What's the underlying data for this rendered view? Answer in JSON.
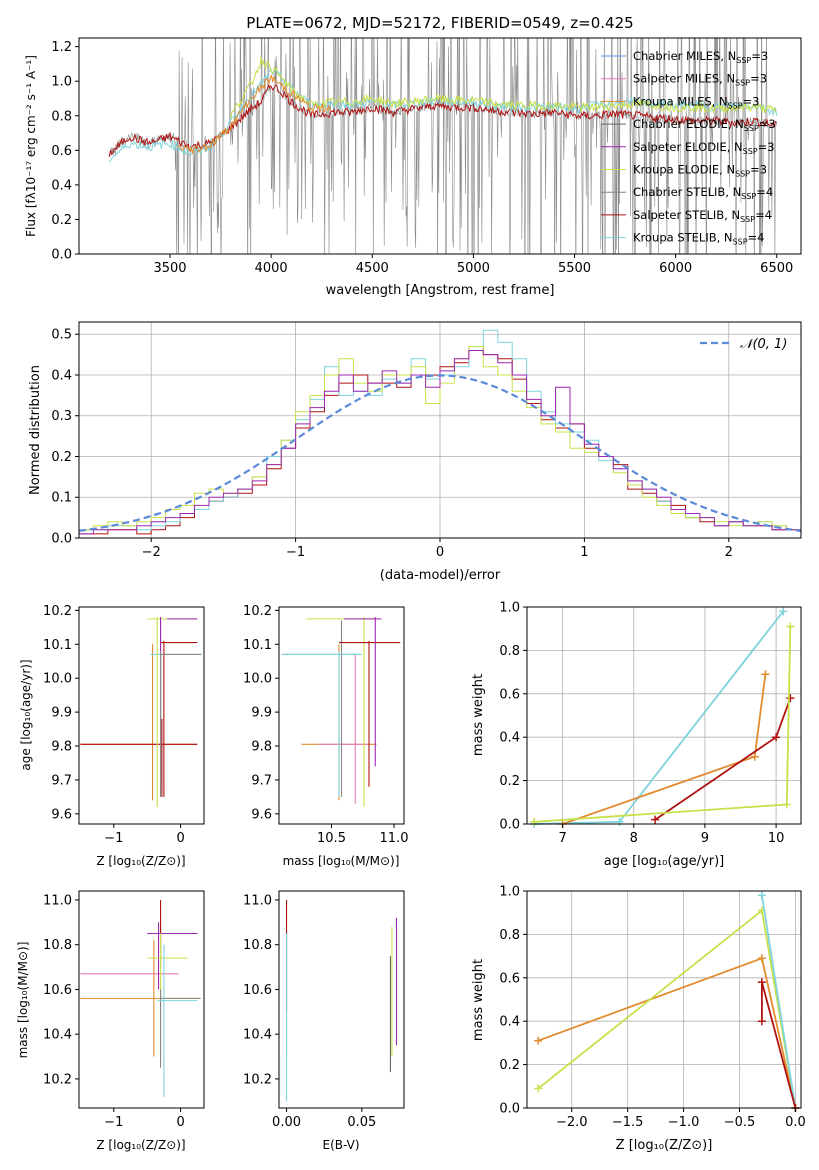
{
  "colors": {
    "miles_chabrier": "#6d8ee6",
    "miles_salpeter": "#e87db7",
    "miles_kroupa": "#e28b2e",
    "elodie_chabrier": "#666666",
    "elodie_salpeter": "#9c27b0",
    "elodie_kroupa": "#c8e04a",
    "stelib_chabrier": "#888888",
    "stelib_salpeter": "#b01212",
    "stelib_kroupa": "#7fd3dc",
    "gaussian": "#5b8ad8"
  },
  "chart_data": [
    {
      "type": "line",
      "id": "spectrum",
      "title": "PLATE=0672, MJD=52172, FIBERID=0549, z=0.425",
      "xlabel": "wavelength [Angstrom, rest frame]",
      "ylabel": "Flux [fλ10⁻¹⁷ erg cm⁻² s⁻¹ A⁻¹]",
      "xlim": [
        3050,
        6620
      ],
      "ylim": [
        0,
        1.25
      ],
      "xticks": [
        3500,
        4000,
        4500,
        5000,
        5500,
        6000,
        6500
      ],
      "yticks": [
        0.0,
        0.2,
        0.4,
        0.6,
        0.8,
        1.0,
        1.2
      ],
      "grid": false,
      "legend_position": "top-right",
      "legend": [
        {
          "label": "Chabrier MILES, N",
          "sub": "SSP",
          "suffix": "=3",
          "color_key": "miles_chabrier"
        },
        {
          "label": "Salpeter MILES, N",
          "sub": "SSP",
          "suffix": "=3",
          "color_key": "miles_salpeter"
        },
        {
          "label": "Kroupa MILES, N",
          "sub": "SSP",
          "suffix": "=3",
          "color_key": "miles_kroupa"
        },
        {
          "label": "Chabrier ELODIE, N",
          "sub": "SSP",
          "suffix": "=3",
          "color_key": "elodie_chabrier"
        },
        {
          "label": "Salpeter ELODIE, N",
          "sub": "SSP",
          "suffix": "=3",
          "color_key": "elodie_salpeter"
        },
        {
          "label": "Kroupa ELODIE, N",
          "sub": "SSP",
          "suffix": "=3",
          "color_key": "elodie_kroupa"
        },
        {
          "label": "Chabrier STELIB, N",
          "sub": "SSP",
          "suffix": "=4",
          "color_key": "stelib_chabrier"
        },
        {
          "label": "Salpeter STELIB, N",
          "sub": "SSP",
          "suffix": "=4",
          "color_key": "stelib_salpeter"
        },
        {
          "label": "Kroupa STELIB, N",
          "sub": "SSP",
          "suffix": "=4",
          "color_key": "stelib_kroupa"
        }
      ],
      "series": [
        {
          "color_key": "stelib_salpeter",
          "x": [
            3200,
            3300,
            3400,
            3500,
            3600,
            3700,
            3800,
            3900,
            3950,
            4000,
            4050,
            4100,
            4200,
            4300,
            4400,
            4500,
            4600,
            4700,
            4800,
            4900,
            5000,
            5100,
            5200,
            5300,
            5400,
            5500,
            5600,
            5700,
            5800,
            5900,
            6000,
            6100,
            6200,
            6300,
            6400,
            6500
          ],
          "y": [
            0.58,
            0.68,
            0.64,
            0.68,
            0.62,
            0.64,
            0.73,
            0.84,
            0.88,
            0.98,
            0.94,
            0.88,
            0.8,
            0.82,
            0.82,
            0.85,
            0.82,
            0.84,
            0.86,
            0.85,
            0.85,
            0.83,
            0.82,
            0.81,
            0.82,
            0.8,
            0.8,
            0.81,
            0.8,
            0.79,
            0.78,
            0.77,
            0.77,
            0.76,
            0.77,
            0.74
          ]
        },
        {
          "color_key": "stelib_kroupa",
          "x": [
            3200,
            3300,
            3400,
            3500,
            3600,
            3700,
            3800,
            3900,
            3950,
            4000,
            4050,
            4100,
            4200,
            4300,
            4400,
            4500,
            4600,
            4700,
            4800,
            4900,
            5000,
            5100,
            5200,
            5300,
            5400,
            5500,
            5600,
            5700,
            5800,
            5900,
            6000,
            6100,
            6200,
            6300,
            6400,
            6500
          ],
          "y": [
            0.55,
            0.64,
            0.62,
            0.64,
            0.58,
            0.62,
            0.76,
            0.92,
            0.98,
            1.06,
            1.02,
            0.96,
            0.86,
            0.87,
            0.86,
            0.88,
            0.86,
            0.87,
            0.89,
            0.88,
            0.88,
            0.86,
            0.85,
            0.85,
            0.85,
            0.84,
            0.86,
            0.87,
            0.88,
            0.87,
            0.86,
            0.86,
            0.85,
            0.86,
            0.86,
            0.82
          ]
        },
        {
          "color_key": "elodie_kroupa",
          "x": [
            3800,
            3900,
            3950,
            4000,
            4050,
            4100,
            4200,
            4300,
            4400,
            4500,
            4600,
            4700,
            4800,
            4900,
            5000,
            5100,
            5200,
            5300,
            5400,
            5500,
            5600,
            5700,
            5800,
            5900,
            6000,
            6100,
            6200,
            6300,
            6400,
            6500
          ],
          "y": [
            0.8,
            0.98,
            1.12,
            1.08,
            1.02,
            0.95,
            0.86,
            0.88,
            0.88,
            0.9,
            0.87,
            0.88,
            0.9,
            0.89,
            0.89,
            0.87,
            0.86,
            0.86,
            0.86,
            0.85,
            0.85,
            0.86,
            0.87,
            0.86,
            0.85,
            0.85,
            0.84,
            0.85,
            0.85,
            0.83
          ]
        },
        {
          "color_key": "miles_kroupa",
          "x": [
            3540,
            3600,
            3700,
            3800,
            3900,
            4000,
            4100,
            4200,
            4300
          ],
          "y": [
            0.62,
            0.6,
            0.63,
            0.74,
            0.9,
            1.02,
            0.93,
            0.84,
            0.85
          ]
        }
      ]
    },
    {
      "type": "line",
      "id": "residuals",
      "xlabel": "(data-model)/error",
      "ylabel": "Normed distribution",
      "xlim": [
        -2.5,
        2.5
      ],
      "ylim": [
        0,
        0.53
      ],
      "xticks": [
        -2,
        -1,
        0,
        1,
        2
      ],
      "xtick_labels": [
        "−2",
        "−1",
        "0",
        "1",
        "2"
      ],
      "yticks": [
        0.0,
        0.1,
        0.2,
        0.3,
        0.4,
        0.5
      ],
      "grid": true,
      "legend_position": "top-right",
      "legend": [
        {
          "label": "𝒩(0, 1)",
          "color_key": "gaussian"
        }
      ],
      "bin_edges_start": -2.5,
      "bin_width": 0.1,
      "series": [
        {
          "color_key": "stelib_salpeter",
          "values": [
            0.01,
            0.01,
            0.02,
            0.02,
            0.01,
            0.02,
            0.03,
            0.05,
            0.07,
            0.09,
            0.1,
            0.11,
            0.13,
            0.17,
            0.22,
            0.27,
            0.31,
            0.35,
            0.38,
            0.4,
            0.38,
            0.38,
            0.37,
            0.4,
            0.4,
            0.42,
            0.43,
            0.47,
            0.45,
            0.44,
            0.39,
            0.33,
            0.29,
            0.27,
            0.28,
            0.22,
            0.2,
            0.18,
            0.12,
            0.11,
            0.09,
            0.08,
            0.05,
            0.04,
            0.03,
            0.04,
            0.03,
            0.03,
            0.02,
            0.02
          ]
        },
        {
          "color_key": "stelib_kroupa",
          "values": [
            0.02,
            0.02,
            0.03,
            0.03,
            0.02,
            0.03,
            0.04,
            0.06,
            0.07,
            0.09,
            0.1,
            0.12,
            0.15,
            0.2,
            0.24,
            0.29,
            0.34,
            0.42,
            0.35,
            0.36,
            0.35,
            0.39,
            0.38,
            0.44,
            0.39,
            0.4,
            0.42,
            0.46,
            0.51,
            0.48,
            0.44,
            0.36,
            0.31,
            0.28,
            0.26,
            0.24,
            0.19,
            0.17,
            0.14,
            0.12,
            0.09,
            0.06,
            0.05,
            0.05,
            0.03,
            0.04,
            0.03,
            0.04,
            0.03,
            0.02
          ]
        },
        {
          "color_key": "elodie_kroupa",
          "values": [
            0.02,
            0.03,
            0.04,
            0.03,
            0.04,
            0.05,
            0.07,
            0.08,
            0.11,
            0.12,
            0.11,
            0.12,
            0.15,
            0.18,
            0.24,
            0.31,
            0.35,
            0.4,
            0.44,
            0.38,
            0.36,
            0.4,
            0.4,
            0.42,
            0.33,
            0.38,
            0.44,
            0.47,
            0.42,
            0.4,
            0.36,
            0.32,
            0.28,
            0.26,
            0.22,
            0.21,
            0.2,
            0.16,
            0.13,
            0.1,
            0.08,
            0.06,
            0.05,
            0.05,
            0.04,
            0.03,
            0.03,
            0.04,
            0.03,
            0.02
          ]
        },
        {
          "color_key": "elodie_salpeter",
          "values": [
            0.01,
            0.02,
            0.02,
            0.02,
            0.03,
            0.04,
            0.05,
            0.06,
            0.08,
            0.1,
            0.11,
            0.12,
            0.14,
            0.18,
            0.22,
            0.28,
            0.32,
            0.36,
            0.4,
            0.36,
            0.38,
            0.41,
            0.38,
            0.4,
            0.37,
            0.41,
            0.44,
            0.46,
            0.45,
            0.43,
            0.4,
            0.34,
            0.3,
            0.37,
            0.28,
            0.23,
            0.2,
            0.17,
            0.14,
            0.12,
            0.1,
            0.07,
            0.06,
            0.05,
            0.03,
            0.04,
            0.03,
            0.03,
            0.02,
            0.02
          ]
        }
      ],
      "gaussian": {
        "mu": 0,
        "sigma": 1
      }
    },
    {
      "type": "scatter",
      "id": "age_vs_Z",
      "xlabel": "Z [log₁₀(Z/Z⊙)]",
      "ylabel": "age  [log₁₀(age/yr)]",
      "xlim": [
        -1.52,
        0.35
      ],
      "ylim": [
        9.57,
        10.21
      ],
      "xticks": [
        -1,
        0
      ],
      "xtick_labels": [
        "−1",
        "0"
      ],
      "yticks": [
        9.6,
        9.7,
        9.8,
        9.9,
        10.0,
        10.1,
        10.2
      ],
      "grid": false
    },
    {
      "type": "scatter",
      "id": "age_vs_mass",
      "xlabel": "mass [log₁₀(M/M⊙)]",
      "xlim": [
        10.08,
        11.08
      ],
      "ylim": [
        9.57,
        10.21
      ],
      "xticks": [
        10.5,
        11.0
      ],
      "yticks": [
        9.6,
        9.7,
        9.8,
        9.9,
        10.0,
        10.1,
        10.2
      ],
      "grid": false
    },
    {
      "type": "line",
      "id": "weight_vs_age",
      "xlabel": "age  [log₁₀(age/yr)]",
      "ylabel": "mass weight",
      "xlim": [
        6.5,
        10.35
      ],
      "ylim": [
        0,
        1.0
      ],
      "xticks": [
        7,
        8,
        9,
        10
      ],
      "yticks": [
        0.0,
        0.2,
        0.4,
        0.6,
        0.8,
        1.0
      ],
      "grid": true,
      "series": [
        {
          "color_key": "stelib_kroupa",
          "x": [
            6.6,
            7.8,
            10.1
          ],
          "y": [
            0.0,
            0.01,
            0.98
          ]
        },
        {
          "color_key": "miles_kroupa",
          "x": [
            7.0,
            9.7,
            9.85
          ],
          "y": [
            0.0,
            0.31,
            0.69
          ]
        },
        {
          "color_key": "stelib_salpeter",
          "x": [
            8.3,
            10.0,
            10.2
          ],
          "y": [
            0.02,
            0.4,
            0.58
          ]
        },
        {
          "color_key": "elodie_kroupa",
          "x": [
            6.6,
            10.15,
            10.2
          ],
          "y": [
            0.01,
            0.09,
            0.91
          ]
        }
      ]
    },
    {
      "type": "scatter",
      "id": "mass_vs_Z",
      "xlabel": "Z [log₁₀(Z/Z⊙)]",
      "ylabel": "mass [log₁₀(M/M⊙)]",
      "xlim": [
        -1.52,
        0.35
      ],
      "ylim": [
        10.07,
        11.04
      ],
      "xticks": [
        -1,
        0
      ],
      "xtick_labels": [
        "−1",
        "0"
      ],
      "yticks": [
        10.2,
        10.4,
        10.6,
        10.8,
        11.0
      ],
      "grid": false
    },
    {
      "type": "scatter",
      "id": "mass_vs_ebv",
      "xlabel": "E(B-V)",
      "xlim": [
        -0.005,
        0.078
      ],
      "ylim": [
        10.07,
        11.04
      ],
      "xticks": [
        0.0,
        0.05
      ],
      "xtick_labels": [
        "0.00",
        "0.05"
      ],
      "yticks": [
        10.2,
        10.4,
        10.6,
        10.8,
        11.0
      ],
      "grid": false
    },
    {
      "type": "line",
      "id": "weight_vs_Z",
      "xlabel": "Z [log₁₀(Z/Z⊙)]",
      "ylabel": "mass weight",
      "xlim": [
        -2.4,
        0.05
      ],
      "ylim": [
        0,
        1.0
      ],
      "xticks": [
        -2.0,
        -1.5,
        -1.0,
        -0.5,
        0.0
      ],
      "xtick_labels": [
        "−2.0",
        "−1.5",
        "−1.0",
        "−0.5",
        "0.0"
      ],
      "yticks": [
        0.0,
        0.2,
        0.4,
        0.6,
        0.8,
        1.0
      ],
      "grid": true,
      "series": [
        {
          "color_key": "miles_kroupa",
          "x": [
            -2.3,
            -0.3,
            0.0
          ],
          "y": [
            0.31,
            0.69,
            0.0
          ]
        },
        {
          "color_key": "elodie_kroupa",
          "x": [
            -2.3,
            -0.3,
            0.0
          ],
          "y": [
            0.09,
            0.91,
            0.0
          ]
        },
        {
          "color_key": "stelib_kroupa",
          "x": [
            -0.3,
            0.0
          ],
          "y": [
            0.98,
            0.0
          ]
        },
        {
          "color_key": "stelib_salpeter",
          "x": [
            -0.3,
            -0.3,
            0.0
          ],
          "y": [
            0.4,
            0.58,
            0.0
          ]
        }
      ]
    }
  ]
}
